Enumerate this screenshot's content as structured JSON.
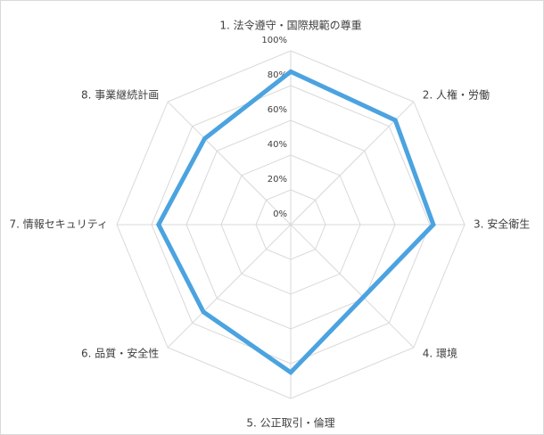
{
  "chart_data": {
    "type": "radar",
    "categories": [
      "1. 法令遵守・国際規範の尊重",
      "2. 人権・労働",
      "3. 安全衛生",
      "4. 環境",
      "5. 公正取引・倫理",
      "6. 品質・安全性",
      "7. 情報セキュリティ",
      "8. 事業継続計画"
    ],
    "values": [
      88,
      85,
      82,
      59,
      85,
      71,
      76,
      70
    ],
    "color": "#4ba3e0",
    "ylim": [
      0,
      100
    ],
    "yticks": [
      {
        "value": 0,
        "label": "0%"
      },
      {
        "value": 20,
        "label": "20%"
      },
      {
        "value": 40,
        "label": "40%"
      },
      {
        "value": 60,
        "label": "60%"
      },
      {
        "value": 80,
        "label": "80%"
      },
      {
        "value": 100,
        "label": "100%"
      }
    ],
    "grid": true
  }
}
